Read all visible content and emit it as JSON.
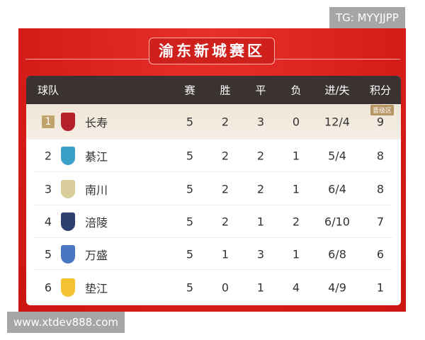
{
  "watermarks": {
    "top": "TG: MYYJJPP",
    "bottom": "www.xtdev888.com"
  },
  "title": "渝东新城赛区",
  "badge": "晋级区",
  "headers": {
    "team": "球队",
    "played": "赛",
    "won": "胜",
    "drawn": "平",
    "lost": "负",
    "goals": "进/失",
    "points": "积分"
  },
  "rows": [
    {
      "rank": "1",
      "team": "长寿",
      "played": "5",
      "won": "2",
      "drawn": "3",
      "lost": "0",
      "goals": "12/4",
      "points": "9",
      "logo_color": "#b5202a"
    },
    {
      "rank": "2",
      "team": "綦江",
      "played": "5",
      "won": "2",
      "drawn": "2",
      "lost": "1",
      "goals": "5/4",
      "points": "8",
      "logo_color": "#3aa0c8"
    },
    {
      "rank": "3",
      "team": "南川",
      "played": "5",
      "won": "2",
      "drawn": "2",
      "lost": "1",
      "goals": "6/4",
      "points": "8",
      "logo_color": "#d8cc9a"
    },
    {
      "rank": "4",
      "team": "涪陵",
      "played": "5",
      "won": "2",
      "drawn": "1",
      "lost": "2",
      "goals": "6/10",
      "points": "7",
      "logo_color": "#2c3f6e"
    },
    {
      "rank": "5",
      "team": "万盛",
      "played": "5",
      "won": "1",
      "drawn": "3",
      "lost": "1",
      "goals": "6/8",
      "points": "6",
      "logo_color": "#4a78c0"
    },
    {
      "rank": "6",
      "team": "垫江",
      "played": "5",
      "won": "0",
      "drawn": "1",
      "lost": "4",
      "goals": "4/9",
      "points": "1",
      "logo_color": "#f2c232"
    }
  ],
  "colors": {
    "panel": "#d81e1a",
    "header": "#3b3331",
    "highlight_row": "#f3ebe0",
    "badge": "#b89663"
  }
}
